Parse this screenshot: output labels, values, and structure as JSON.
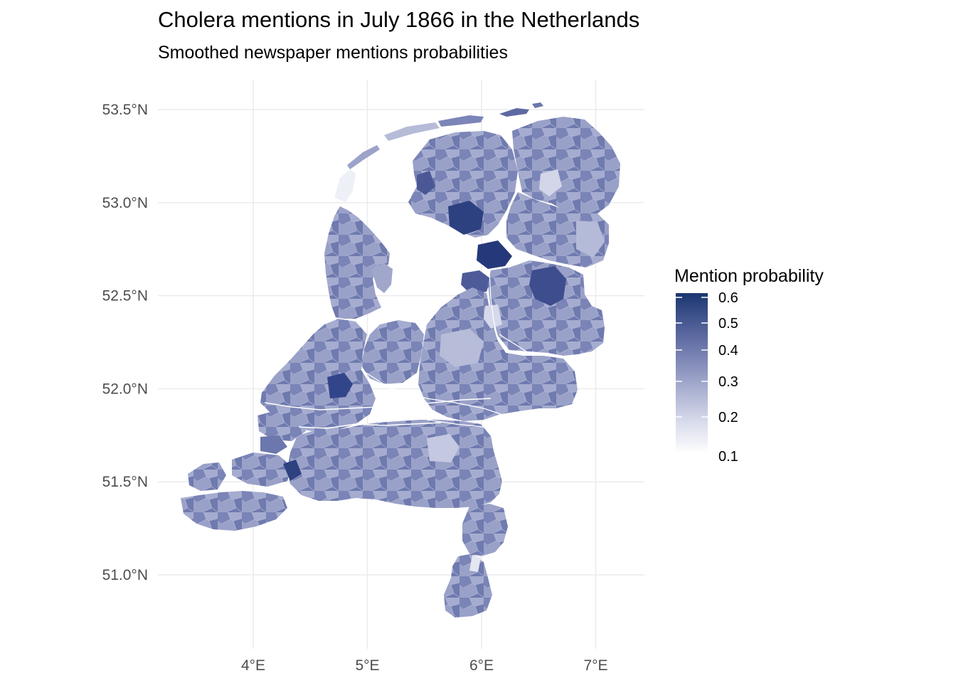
{
  "title": "Cholera mentions in July 1866 in the Netherlands",
  "subtitle": "Smoothed newspaper mentions probabilities",
  "axes": {
    "x_ticks": [
      {
        "value": 4,
        "label": "4°E"
      },
      {
        "value": 5,
        "label": "5°E"
      },
      {
        "value": 6,
        "label": "6°E"
      },
      {
        "value": 7,
        "label": "7°E"
      }
    ],
    "y_ticks": [
      {
        "value": 53.5,
        "label": "53.5°N"
      },
      {
        "value": 53.0,
        "label": "53.0°N"
      },
      {
        "value": 52.5,
        "label": "52.5°N"
      },
      {
        "value": 52.0,
        "label": "52.0°N"
      },
      {
        "value": 51.5,
        "label": "51.5°N"
      },
      {
        "value": 51.0,
        "label": "51.0°N"
      }
    ],
    "xlim": [
      3.2,
      7.4
    ],
    "ylim": [
      50.6,
      53.7
    ]
  },
  "legend": {
    "title": "Mention probability",
    "ticks": [
      "0.6",
      "0.5",
      "0.4",
      "0.3",
      "0.2",
      "0.1"
    ],
    "low_color": "#ffffff",
    "high_color": "#1c3671"
  },
  "colors": {
    "grid": "#ebebeb",
    "land_low": "#c5c9df",
    "land_mid": "#8a92bd",
    "land_high": "#283d7a",
    "borders": "#ffffff"
  }
}
